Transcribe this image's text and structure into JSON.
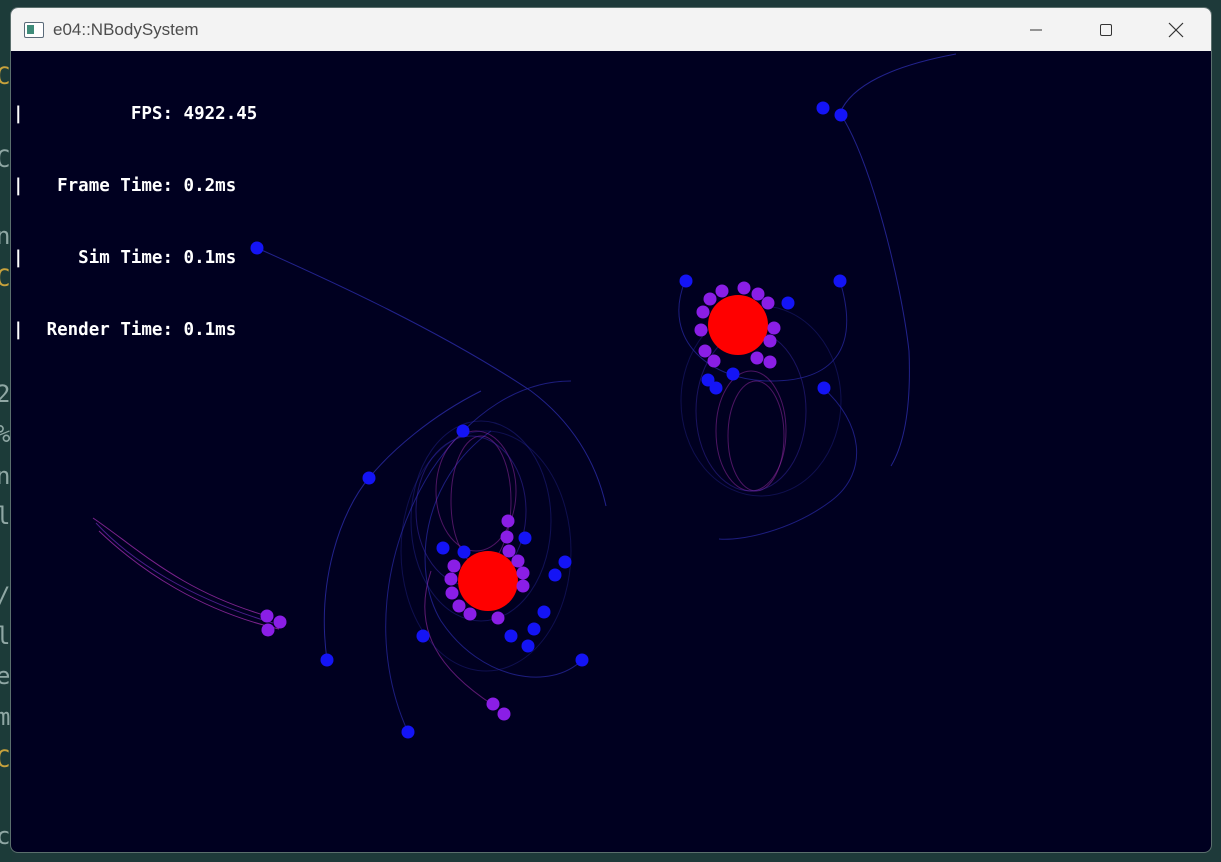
{
  "window": {
    "title": "e04::NBodySystem",
    "icon": "app-window-icon"
  },
  "controls": {
    "minimize_icon": "minimize-icon",
    "maximize_icon": "maximize-icon",
    "close_icon": "close-icon"
  },
  "stats": {
    "fps_label": "FPS:",
    "fps_value": "4922.45",
    "frame_label": "Frame Time:",
    "frame_value": "0.2ms",
    "sim_label": "Sim Time:",
    "sim_value": "0.1ms",
    "render_label": "Render Time:",
    "render_value": "0.1ms"
  },
  "colors": {
    "background": "#000020",
    "star": "#ff0000",
    "inner_body": "#8a1ee6",
    "outer_body": "#1414f5",
    "trail_blue": "#2a2aa8",
    "trail_purple": "#9a2aa8"
  },
  "background_glyphs": [
    "C",
    "C",
    "n",
    "C",
    "2",
    "%",
    "n",
    "l",
    "/",
    "l",
    "e",
    "m",
    "C",
    "c"
  ]
}
